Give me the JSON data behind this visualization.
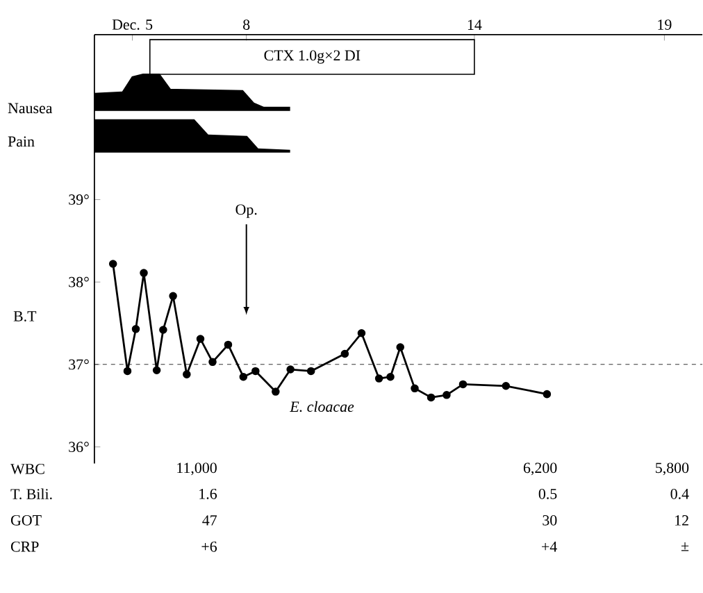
{
  "chart_data": {
    "type": "line",
    "ylabel": "B.T",
    "x": [
      4.49,
      4.87,
      5.09,
      5.3,
      5.64,
      5.81,
      6.07,
      6.43,
      6.79,
      7.11,
      7.52,
      7.92,
      8.24,
      8.77,
      9.16,
      9.7,
      10.59,
      11.03,
      11.49,
      11.79,
      12.05,
      12.43,
      12.86,
      13.27,
      13.7,
      14.83,
      15.91
    ],
    "series": [
      {
        "color": "#000000",
        "values": [
          38.22,
          36.92,
          37.43,
          38.11,
          36.93,
          37.42,
          37.83,
          36.88,
          37.31,
          37.03,
          37.24,
          36.85,
          36.92,
          36.67,
          36.94,
          36.92,
          37.13,
          37.38,
          36.83,
          36.85,
          37.21,
          36.71,
          36.6,
          36.63,
          36.76,
          36.74,
          36.64
        ]
      }
    ],
    "xlim": [
      4,
      20
    ],
    "xticks": [
      {
        "value": 5,
        "label": "Dec. 5"
      },
      8,
      14,
      19
    ],
    "ylim": [
      35.8,
      41
    ],
    "yticks": [
      {
        "value": 36,
        "label": "36°"
      },
      {
        "value": 37,
        "label": "37°"
      },
      {
        "value": 38,
        "label": "38°"
      },
      {
        "value": 39,
        "label": "39°"
      }
    ],
    "ref_lines": [
      {
        "axis": "y",
        "value": 37,
        "line_style": "dashed"
      }
    ],
    "annotations": [
      "Op.",
      "E. cloacae",
      "Nausea",
      "Pain",
      "CTX  1.0g×2    DI",
      "WBC",
      "11,000",
      "6,200",
      "5,800",
      "T. Bili.",
      "1.6",
      "0.5",
      "0.4",
      "GOT",
      "47",
      "30",
      "12",
      "CRP",
      "+6",
      "+4",
      "±"
    ],
    "marker": "circle",
    "line_style": "solid"
  }
}
